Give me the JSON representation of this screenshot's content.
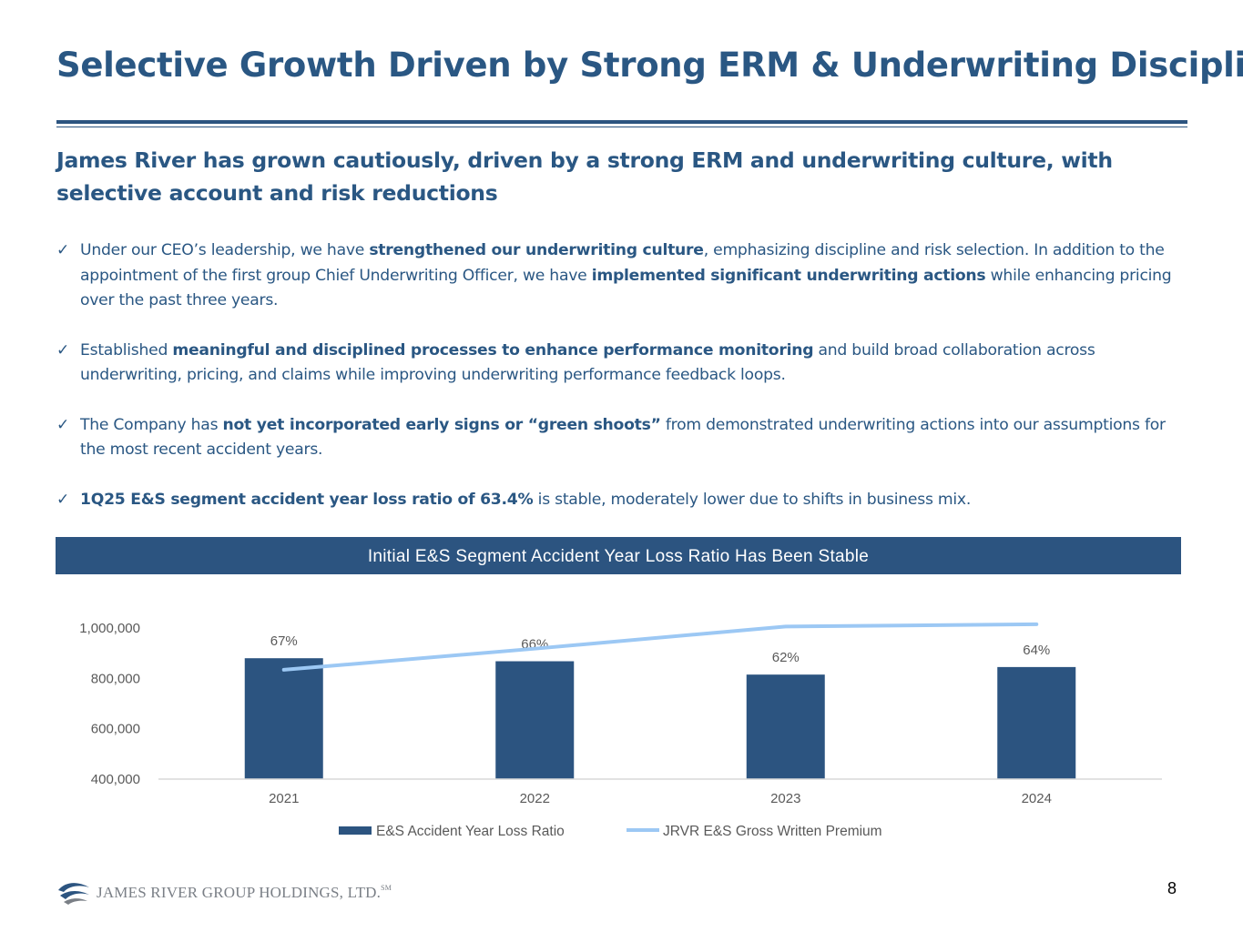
{
  "title": "Selective Growth Driven by Strong ERM & Underwriting Discipline",
  "subtitle": "James River has grown cautiously, driven by a strong ERM and underwriting culture, with selective account and risk reductions",
  "bullets": [
    {
      "p1": "Under our CEO’s leadership, we have ",
      "b1": "strengthened our underwriting culture",
      "p2": ", emphasizing discipline and risk selection. In addition to the appointment of the first group Chief Underwriting Officer, we have ",
      "b2": "implemented significant underwriting actions",
      "p3": " while enhancing pricing over the past three years."
    },
    {
      "p1": "Established ",
      "b1": "meaningful and disciplined processes to enhance performance monitoring",
      "p2": " and build broad collaboration across underwriting, pricing, and claims while improving underwriting performance feedback loops."
    },
    {
      "p1": " The Company has ",
      "b1": "not yet incorporated early signs or “green shoots”",
      "p2": " from demonstrated underwriting actions into our assumptions for the most recent accident years."
    },
    {
      "b1": "1Q25 E&S segment accident year loss ratio of 63.4%",
      "p2": " is stable, moderately lower due to shifts in business mix."
    }
  ],
  "check_glyph": "✓",
  "chart_banner": "Initial E&S Segment Accident Year Loss Ratio Has Been Stable",
  "chart_data": {
    "type": "bar",
    "title": "Initial E&S Segment Accident Year Loss Ratio Has Been Stable",
    "categories": [
      "2021",
      "2022",
      "2023",
      "2024"
    ],
    "series": [
      {
        "name": "E&S Accident Year Loss Ratio",
        "type": "bar",
        "values": [
          880000,
          868000,
          815000,
          845000
        ],
        "labels": [
          "67%",
          "66%",
          "62%",
          "64%"
        ],
        "color": "#2c5480"
      },
      {
        "name": "JRVR E&S Gross Written Premium",
        "type": "line",
        "values": [
          834000,
          918000,
          1006000,
          1015000
        ],
        "color": "#9cc8f4"
      }
    ],
    "yticks": [
      400000,
      600000,
      800000,
      1000000
    ],
    "ytick_labels": [
      "400,000",
      "600,000",
      "800,000",
      "1,000,000"
    ],
    "ylim": [
      400000,
      1050000
    ],
    "xlabel": "",
    "ylabel": "",
    "legend": "bottom-center"
  },
  "footer": {
    "logo_text": "JAMES RIVER GROUP HOLDINGS, LTD.",
    "logo_tm": "SM",
    "page_number": "8"
  },
  "colors": {
    "brand_blue": "#2a5783",
    "bar": "#2c5480",
    "line": "#9cc8f4"
  }
}
